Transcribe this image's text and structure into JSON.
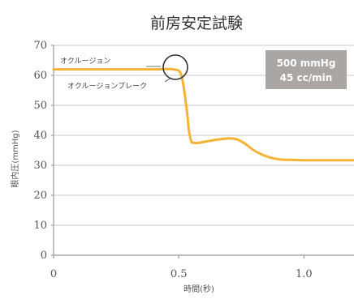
{
  "chart_data": {
    "type": "line",
    "title": "前房安定試験",
    "xlabel": "時間(秒)",
    "ylabel": "眼内圧(mmHg)",
    "xlim": [
      0,
      1.2
    ],
    "ylim": [
      0,
      70
    ],
    "x_ticks": [
      0,
      0.5,
      1.0
    ],
    "x_tick_labels": [
      "0",
      "0.5",
      "1.0"
    ],
    "y_ticks": [
      0,
      10,
      20,
      30,
      40,
      50,
      60,
      70
    ],
    "y_tick_labels": [
      "0",
      "10",
      "20",
      "30",
      "40",
      "50",
      "60",
      "70"
    ],
    "grid": true,
    "series": [
      {
        "color": "#f5b335",
        "x": [
          0,
          0.1,
          0.2,
          0.3,
          0.4,
          0.48,
          0.51,
          0.53,
          0.54,
          0.55,
          0.56,
          0.58,
          0.6,
          0.65,
          0.7,
          0.73,
          0.76,
          0.8,
          0.85,
          0.9,
          0.95,
          1.0,
          1.05,
          1.1,
          1.2
        ],
        "y": [
          62,
          62,
          62,
          62,
          62,
          62,
          60,
          50,
          42,
          38,
          37.5,
          37.5,
          37.8,
          38.5,
          39,
          38.7,
          37.5,
          35,
          33,
          32,
          31.8,
          31.7,
          31.7,
          31.7,
          31.7
        ]
      }
    ],
    "annotations": {
      "occlusion": "オクルージョン",
      "occlusion_break": "オクルージョンブレーク",
      "badge_line1": "500 mmHg",
      "badge_line2": "45 cc/min"
    }
  },
  "colors": {
    "line": "#f5b335",
    "badge": "#a9a6a4",
    "grid": "#c9c9cf"
  }
}
